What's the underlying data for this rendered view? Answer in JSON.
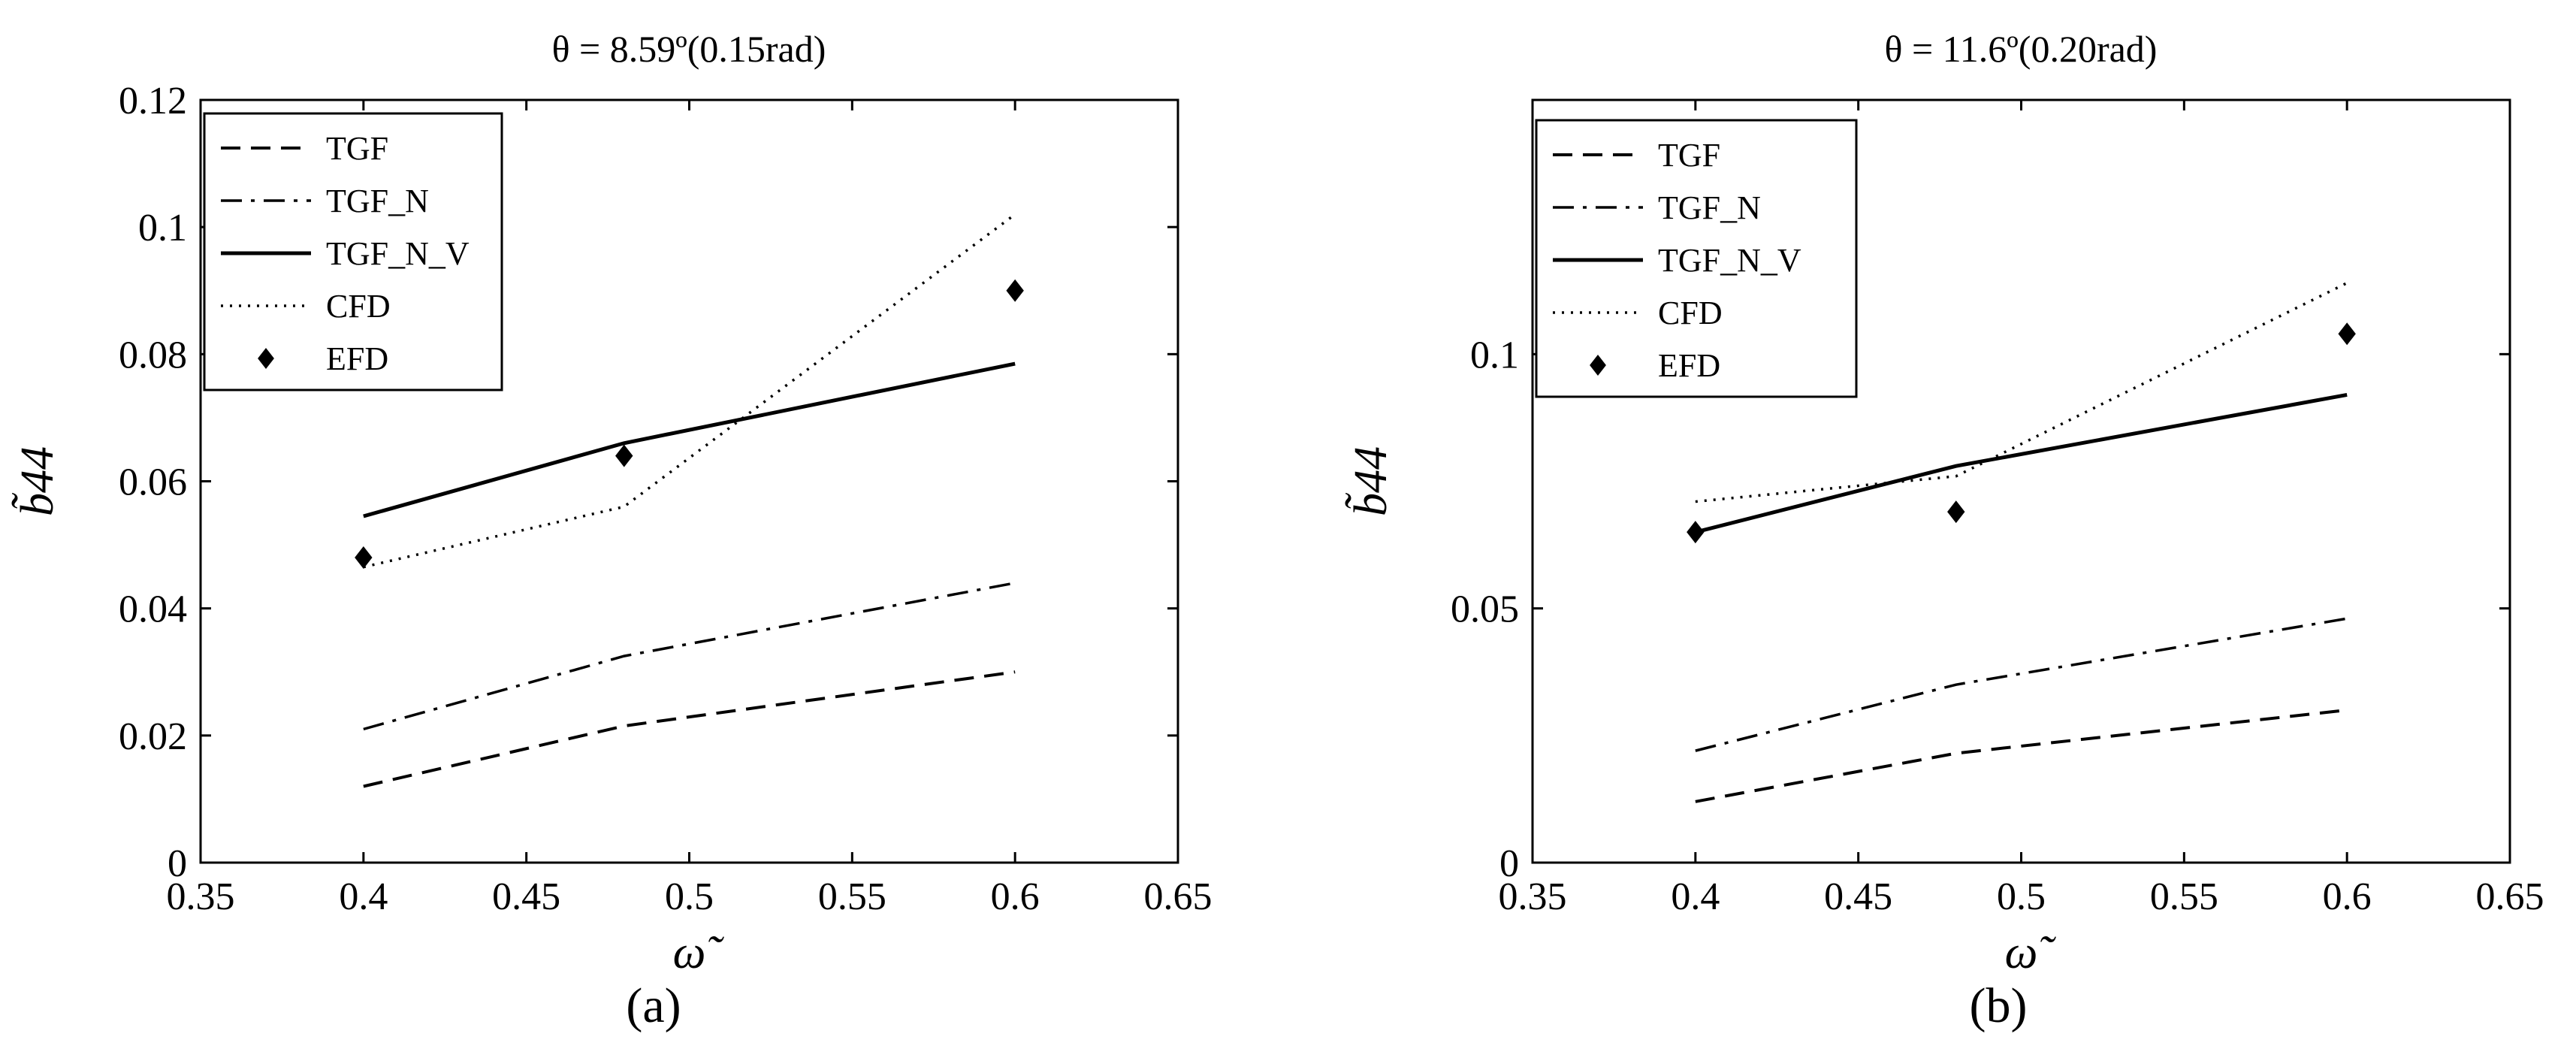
{
  "chart_data": [
    {
      "type": "line",
      "title": "θ = 8.59º(0.15rad)",
      "panel_label": "(a)",
      "xlabel": "ω̃",
      "ylabel": "b̃44",
      "xlim": [
        0.35,
        0.65
      ],
      "ylim": [
        0,
        0.12
      ],
      "xticks": [
        0.35,
        0.4,
        0.45,
        0.5,
        0.55,
        0.6,
        0.65
      ],
      "xtick_labels": [
        "0.35",
        "0.4",
        "0.45",
        "0.5",
        "0.55",
        "0.6",
        "0.65"
      ],
      "yticks": [
        0,
        0.02,
        0.04,
        0.06,
        0.08,
        0.1,
        0.12
      ],
      "ytick_labels": [
        "0",
        "0.02",
        "0.04",
        "0.06",
        "0.08",
        "0.1",
        "0.12"
      ],
      "legend_position": "top-left",
      "series": [
        {
          "name": "TGF",
          "style": "dashed",
          "x": [
            0.4,
            0.48,
            0.6
          ],
          "values": [
            0.012,
            0.0215,
            0.03
          ]
        },
        {
          "name": "TGF_N",
          "style": "dashdot",
          "x": [
            0.4,
            0.48,
            0.6
          ],
          "values": [
            0.021,
            0.0325,
            0.044
          ]
        },
        {
          "name": "TGF_N_V",
          "style": "solid",
          "x": [
            0.4,
            0.48,
            0.6
          ],
          "values": [
            0.0545,
            0.066,
            0.0785
          ]
        },
        {
          "name": "CFD",
          "style": "dotted",
          "x": [
            0.4,
            0.48,
            0.6
          ],
          "values": [
            0.0465,
            0.056,
            0.102
          ]
        },
        {
          "name": "EFD",
          "style": "diamond",
          "x": [
            0.4,
            0.48,
            0.6
          ],
          "values": [
            0.048,
            0.064,
            0.09
          ]
        }
      ]
    },
    {
      "type": "line",
      "title": "θ = 11.6º(0.20rad)",
      "panel_label": "(b)",
      "xlabel": "ω̃",
      "ylabel": "b̃44",
      "xlim": [
        0.35,
        0.65
      ],
      "ylim": [
        0,
        0.15
      ],
      "xticks": [
        0.35,
        0.4,
        0.45,
        0.5,
        0.55,
        0.6,
        0.65
      ],
      "xtick_labels": [
        "0.35",
        "0.4",
        "0.45",
        "0.5",
        "0.55",
        "0.6",
        "0.65"
      ],
      "yticks": [
        0,
        0.05,
        0.1
      ],
      "ytick_labels": [
        "0",
        "0.05",
        "0.1"
      ],
      "legend_position": "top-left",
      "series": [
        {
          "name": "TGF",
          "style": "dashed",
          "x": [
            0.4,
            0.48,
            0.6
          ],
          "values": [
            0.012,
            0.0215,
            0.03
          ]
        },
        {
          "name": "TGF_N",
          "style": "dashdot",
          "x": [
            0.4,
            0.48,
            0.6
          ],
          "values": [
            0.022,
            0.035,
            0.048
          ]
        },
        {
          "name": "TGF_N_V",
          "style": "solid",
          "x": [
            0.4,
            0.48,
            0.6
          ],
          "values": [
            0.065,
            0.078,
            0.092
          ]
        },
        {
          "name": "CFD",
          "style": "dotted",
          "x": [
            0.4,
            0.48,
            0.6
          ],
          "values": [
            0.071,
            0.076,
            0.114
          ]
        },
        {
          "name": "EFD",
          "style": "diamond",
          "x": [
            0.4,
            0.48,
            0.6
          ],
          "values": [
            0.065,
            0.069,
            0.104
          ]
        }
      ]
    }
  ]
}
